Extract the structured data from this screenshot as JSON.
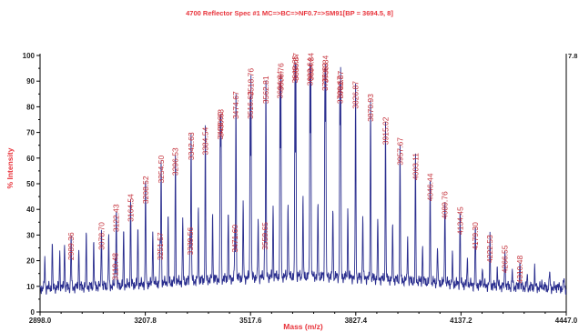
{
  "chart_data": {
    "type": "line",
    "title": "4700 Reflector Spec #1 MC=>BC=>NF0.7=>SM91[BP = 3694.5, 8]",
    "xlabel": "Mass (m/z)",
    "ylabel": "% Intensity",
    "right_axis_value": "7.8",
    "xlim": [
      2898.0,
      4447.0
    ],
    "ylim": [
      0,
      100
    ],
    "x_ticks": [
      "2898.0",
      "3207.8",
      "3517.6",
      "3827.4",
      "4137.2",
      "4447.0"
    ],
    "y_ticks": [
      "0",
      "10",
      "20",
      "30",
      "40",
      "50",
      "60",
      "70",
      "80",
      "90",
      "100"
    ],
    "color": "#2b2f8f",
    "series": [
      {
        "peaks": [
          {
            "x": 2912.0,
            "y": 21
          },
          {
            "x": 2934.0,
            "y": 27
          },
          {
            "x": 2956.0,
            "y": 24
          },
          {
            "x": 2970.0,
            "y": 28
          },
          {
            "x": 2989.36,
            "y": 30,
            "label": "2989.36"
          },
          {
            "x": 3012.0,
            "y": 26
          },
          {
            "x": 3034.0,
            "y": 30
          },
          {
            "x": 3056.0,
            "y": 27
          },
          {
            "x": 3078.7,
            "y": 34,
            "label": "3078.70"
          },
          {
            "x": 3100.0,
            "y": 30
          },
          {
            "x": 3119.48,
            "y": 22,
            "label": "3119.48"
          },
          {
            "x": 3122.43,
            "y": 41,
            "label": "3122.43"
          },
          {
            "x": 3144.0,
            "y": 32
          },
          {
            "x": 3164.54,
            "y": 45,
            "label": "3164.54"
          },
          {
            "x": 3186.0,
            "y": 33
          },
          {
            "x": 3208.52,
            "y": 52,
            "label": "3208.52"
          },
          {
            "x": 3230.0,
            "y": 33
          },
          {
            "x": 3251.57,
            "y": 30,
            "label": "3251.57"
          },
          {
            "x": 3254.5,
            "y": 60,
            "label": "3254.50"
          },
          {
            "x": 3275.0,
            "y": 38
          },
          {
            "x": 3296.53,
            "y": 63,
            "label": "3296.53"
          },
          {
            "x": 3318.0,
            "y": 36
          },
          {
            "x": 3339.56,
            "y": 32,
            "label": "3339.56"
          },
          {
            "x": 3342.63,
            "y": 69,
            "label": "3342.63"
          },
          {
            "x": 3364.0,
            "y": 40
          },
          {
            "x": 3384.54,
            "y": 71,
            "label": "3384.54"
          },
          {
            "x": 3406.0,
            "y": 38
          },
          {
            "x": 3428.6,
            "y": 77,
            "label": "3428.60"
          },
          {
            "x": 3430.63,
            "y": 78,
            "label": "3430.63"
          },
          {
            "x": 3452.0,
            "y": 40
          },
          {
            "x": 3471.6,
            "y": 33,
            "label": "3471.60"
          },
          {
            "x": 3474.67,
            "y": 85,
            "label": "3474.67"
          },
          {
            "x": 3496.0,
            "y": 42
          },
          {
            "x": 3516.62,
            "y": 85,
            "label": "3516.62"
          },
          {
            "x": 3518.76,
            "y": 94,
            "label": "3518.76"
          },
          {
            "x": 3540.0,
            "y": 36
          },
          {
            "x": 3559.65,
            "y": 34,
            "label": "3559.65"
          },
          {
            "x": 3562.81,
            "y": 91,
            "label": "3562.81"
          },
          {
            "x": 3584.0,
            "y": 42
          },
          {
            "x": 3604.64,
            "y": 93,
            "label": "3604.64"
          },
          {
            "x": 3606.76,
            "y": 96,
            "label": "3606.76"
          },
          {
            "x": 3628.0,
            "y": 44
          },
          {
            "x": 3648.65,
            "y": 99,
            "label": "3648.65"
          },
          {
            "x": 3650.87,
            "y": 100,
            "label": "3650.87"
          },
          {
            "x": 3672.0,
            "y": 44
          },
          {
            "x": 3692.64,
            "y": 98,
            "label": "3692.64"
          },
          {
            "x": 3694.84,
            "y": 100,
            "label": "3694.84"
          },
          {
            "x": 3716.0,
            "y": 42
          },
          {
            "x": 3736.63,
            "y": 96,
            "label": "3736.63"
          },
          {
            "x": 3738.84,
            "y": 99,
            "label": "3738.84"
          },
          {
            "x": 3760.0,
            "y": 42
          },
          {
            "x": 3780.67,
            "y": 91,
            "label": "3780.67"
          },
          {
            "x": 3782.87,
            "y": 93,
            "label": "3782.87"
          },
          {
            "x": 3804.0,
            "y": 40
          },
          {
            "x": 3826.87,
            "y": 89,
            "label": "3826.87"
          },
          {
            "x": 3848.0,
            "y": 38
          },
          {
            "x": 3870.93,
            "y": 84,
            "label": "3870.93"
          },
          {
            "x": 3892.0,
            "y": 36
          },
          {
            "x": 3915.02,
            "y": 75,
            "label": "3915.02"
          },
          {
            "x": 3936.0,
            "y": 34
          },
          {
            "x": 3957.67,
            "y": 67,
            "label": "3957.67"
          },
          {
            "x": 3980.0,
            "y": 30
          },
          {
            "x": 4003.11,
            "y": 61,
            "label": "4003.11"
          },
          {
            "x": 4024.0,
            "y": 26
          },
          {
            "x": 4046.44,
            "y": 53,
            "label": "4046.44"
          },
          {
            "x": 4068.0,
            "y": 26
          },
          {
            "x": 4089.76,
            "y": 46,
            "label": "4089.76"
          },
          {
            "x": 4112.0,
            "y": 22
          },
          {
            "x": 4134.45,
            "y": 40,
            "label": "4134.45"
          },
          {
            "x": 4156.0,
            "y": 21
          },
          {
            "x": 4179.3,
            "y": 34,
            "label": "4179.30"
          },
          {
            "x": 4200.0,
            "y": 19
          },
          {
            "x": 4222.53,
            "y": 29,
            "label": "4222.53"
          },
          {
            "x": 4244.0,
            "y": 17
          },
          {
            "x": 4266.55,
            "y": 25,
            "label": "4266.55"
          },
          {
            "x": 4288.0,
            "y": 16
          },
          {
            "x": 4310.48,
            "y": 21,
            "label": "4310.48"
          },
          {
            "x": 4332.0,
            "y": 14
          },
          {
            "x": 4354.0,
            "y": 17
          },
          {
            "x": 4376.0,
            "y": 12
          },
          {
            "x": 4398.0,
            "y": 16
          },
          {
            "x": 4420.0,
            "y": 11
          },
          {
            "x": 4440.0,
            "y": 13
          }
        ]
      }
    ]
  }
}
